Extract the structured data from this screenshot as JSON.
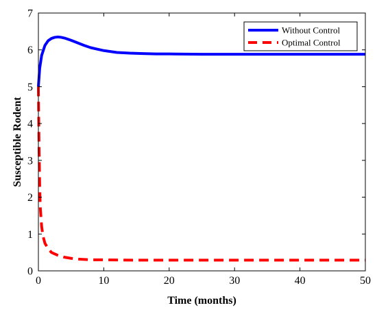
{
  "chart_data": {
    "type": "line",
    "title": "",
    "xlabel": "Time (months)",
    "ylabel": "Susceptible Rodent",
    "xlim": [
      0,
      50
    ],
    "ylim": [
      0,
      7
    ],
    "xticks": [
      0,
      10,
      20,
      30,
      40,
      50
    ],
    "yticks": [
      0,
      1,
      2,
      3,
      4,
      5,
      6,
      7
    ],
    "grid": false,
    "legend_position": "top-right",
    "series": [
      {
        "name": "Without Control",
        "color": "#0000ff",
        "style": "solid",
        "x": [
          0,
          0.2,
          0.5,
          1,
          1.5,
          2,
          2.5,
          3,
          3.5,
          4,
          5,
          6,
          7,
          8,
          9,
          10,
          12,
          14,
          16,
          18,
          20,
          25,
          30,
          35,
          40,
          45,
          50
        ],
        "y": [
          5.0,
          5.5,
          5.85,
          6.12,
          6.25,
          6.31,
          6.34,
          6.35,
          6.34,
          6.32,
          6.26,
          6.19,
          6.12,
          6.06,
          6.02,
          5.98,
          5.93,
          5.91,
          5.9,
          5.89,
          5.89,
          5.88,
          5.88,
          5.88,
          5.88,
          5.88,
          5.88
        ]
      },
      {
        "name": "Optimal Control",
        "color": "#ff0000",
        "style": "dashed",
        "x": [
          0,
          0.05,
          0.1,
          0.2,
          0.3,
          0.5,
          0.7,
          1,
          1.5,
          2,
          3,
          4,
          5,
          6,
          8,
          10,
          15,
          20,
          30,
          40,
          50
        ],
        "y": [
          5.0,
          4.2,
          3.4,
          2.3,
          1.7,
          1.2,
          0.95,
          0.75,
          0.6,
          0.5,
          0.42,
          0.37,
          0.34,
          0.32,
          0.3,
          0.3,
          0.29,
          0.29,
          0.29,
          0.29,
          0.29
        ]
      }
    ]
  }
}
